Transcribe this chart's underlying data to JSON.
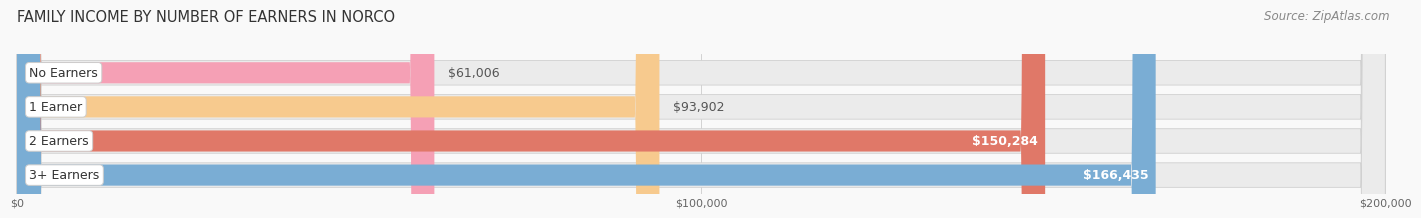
{
  "title": "FAMILY INCOME BY NUMBER OF EARNERS IN NORCO",
  "source": "Source: ZipAtlas.com",
  "categories": [
    "No Earners",
    "1 Earner",
    "2 Earners",
    "3+ Earners"
  ],
  "values": [
    61006,
    93902,
    150284,
    166435
  ],
  "value_labels": [
    "$61,006",
    "$93,902",
    "$150,284",
    "$166,435"
  ],
  "bar_colors": [
    "#f5a0b5",
    "#f7ca8e",
    "#e07868",
    "#7aadd4"
  ],
  "bar_edge_colors": [
    "#e07090",
    "#e0a050",
    "#c05040",
    "#4a80b0"
  ],
  "track_color": "#ebebeb",
  "track_edge_color": "#d0d0d0",
  "x_max": 200000,
  "x_ticks": [
    0,
    100000,
    200000
  ],
  "x_tick_labels": [
    "$0",
    "$100,000",
    "$200,000"
  ],
  "title_fontsize": 10.5,
  "source_fontsize": 8.5,
  "label_fontsize": 9,
  "value_fontsize": 9,
  "bg_color": "#f9f9f9",
  "fig_width": 14.06,
  "fig_height": 2.33
}
